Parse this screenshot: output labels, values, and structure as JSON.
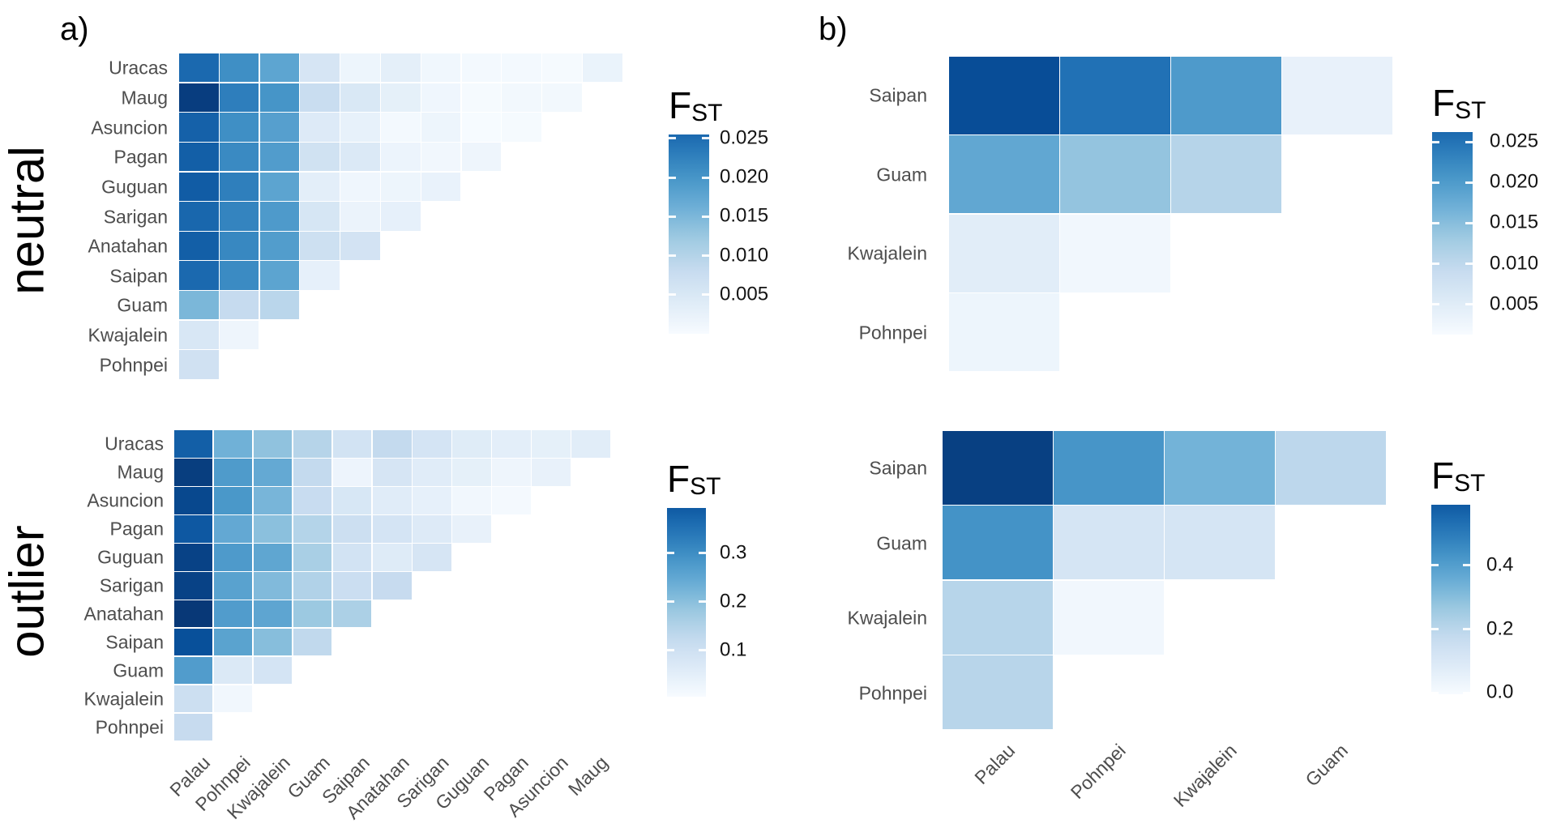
{
  "figure": {
    "panel_a_label": "a)",
    "panel_b_label": "b)",
    "group_labels": [
      "neutral",
      "outlier"
    ],
    "colors": {
      "background": "#ffffff",
      "axis_label_text": "#4d4d4d",
      "title_text": "#000000",
      "legend_tick_text": "#141414"
    },
    "colormap_blues": [
      "#F7FBFF",
      "#DEEBF7",
      "#C6DBEF",
      "#9ECAE1",
      "#6BAED6",
      "#4292C6",
      "#2171B5",
      "#08519C",
      "#08306B"
    ]
  },
  "chart_data": [
    {
      "id": "a_neutral",
      "type": "heatmap",
      "panel": "a",
      "condition": "neutral",
      "ylabels": [
        "Uracas",
        "Maug",
        "Asuncion",
        "Pagan",
        "Guguan",
        "Sarigan",
        "Anatahan",
        "Saipan",
        "Guam",
        "Kwajalein",
        "Pohnpei"
      ],
      "xlabels": [
        "Palau",
        "Pohnpei",
        "Kwajalein",
        "Guam",
        "Saipan",
        "Anatahan",
        "Sarigan",
        "Guguan",
        "Pagan",
        "Asuncion",
        "Maug"
      ],
      "show_xlabels": false,
      "color_domain": [
        0,
        0.026
      ],
      "values": [
        [
          0.0203,
          0.0165,
          0.0141,
          0.0044,
          0.0013,
          0.0025,
          0.0009,
          0.0005,
          0.0005,
          0.0003,
          0.0017
        ],
        [
          0.0247,
          0.0182,
          0.0159,
          0.0061,
          0.0039,
          0.0023,
          0.001,
          0.0003,
          0.0007,
          0.0007
        ],
        [
          0.0211,
          0.0165,
          0.0147,
          0.0034,
          0.0021,
          0.0005,
          0.0013,
          0.0001,
          0.0003
        ],
        [
          0.0213,
          0.017,
          0.0151,
          0.0051,
          0.0036,
          0.0014,
          0.0008,
          0.0012
        ],
        [
          0.0216,
          0.0181,
          0.0142,
          0.0026,
          0.001,
          0.0013,
          0.0018
        ],
        [
          0.0205,
          0.0176,
          0.0153,
          0.0043,
          0.0016,
          0.0022
        ],
        [
          0.0213,
          0.0172,
          0.015,
          0.0055,
          0.0048
        ],
        [
          0.0203,
          0.0169,
          0.0142,
          0.0022
        ],
        [
          0.012,
          0.0065,
          0.0075
        ],
        [
          0.004,
          0.0012
        ],
        [
          0.0052
        ]
      ],
      "legend": {
        "title_main": "F",
        "title_sub": "ST",
        "ticks": [
          0.025,
          0.02,
          0.015,
          0.01,
          0.005
        ],
        "tick_labels": [
          "0.025",
          "0.020",
          "0.015",
          "0.010",
          "0.005"
        ],
        "bar_domain": [
          0,
          0.0255
        ],
        "bar_top_t": 0.78
      }
    },
    {
      "id": "a_outlier",
      "type": "heatmap",
      "panel": "a",
      "condition": "outlier",
      "ylabels": [
        "Uracas",
        "Maug",
        "Asuncion",
        "Pagan",
        "Guguan",
        "Sarigan",
        "Anatahan",
        "Saipan",
        "Guam",
        "Kwajalein",
        "Pohnpei"
      ],
      "xlabels": [
        "Palau",
        "Pohnpei",
        "Kwajalein",
        "Guam",
        "Saipan",
        "Anatahan",
        "Sarigan",
        "Guguan",
        "Pagan",
        "Asuncion",
        "Maug"
      ],
      "show_xlabels": true,
      "color_domain": [
        0,
        0.39
      ],
      "values": [
        [
          0.32,
          0.19,
          0.16,
          0.117,
          0.074,
          0.1,
          0.07,
          0.047,
          0.039,
          0.035,
          0.043
        ],
        [
          0.37,
          0.228,
          0.203,
          0.1,
          0.02,
          0.066,
          0.045,
          0.035,
          0.018,
          0.029
        ],
        [
          0.355,
          0.234,
          0.183,
          0.094,
          0.062,
          0.045,
          0.033,
          0.012,
          0.006
        ],
        [
          0.33,
          0.205,
          0.164,
          0.119,
          0.086,
          0.07,
          0.051,
          0.029
        ],
        [
          0.363,
          0.23,
          0.209,
          0.133,
          0.074,
          0.049,
          0.066
        ],
        [
          0.363,
          0.216,
          0.174,
          0.123,
          0.088,
          0.096
        ],
        [
          0.378,
          0.226,
          0.211,
          0.148,
          0.129
        ],
        [
          0.343,
          0.215,
          0.168,
          0.103
        ],
        [
          0.226,
          0.055,
          0.07
        ],
        [
          0.086,
          0.012
        ],
        [
          0.096
        ]
      ],
      "legend": {
        "title_main": "F",
        "title_sub": "ST",
        "ticks": [
          0.3,
          0.2,
          0.1
        ],
        "tick_labels": [
          "0.3",
          "0.2",
          "0.1"
        ],
        "bar_domain": [
          0.005,
          0.393
        ],
        "bar_top_t": 0.84
      }
    },
    {
      "id": "b_neutral",
      "type": "heatmap",
      "panel": "b",
      "condition": "neutral",
      "ylabels": [
        "Saipan",
        "Guam",
        "Kwajalein",
        "Pohnpei"
      ],
      "xlabels": [
        "Palau",
        "Pohnpei",
        "Kwajalein",
        "Guam"
      ],
      "show_xlabels": false,
      "color_domain": [
        0,
        0.026
      ],
      "values": [
        [
          0.0231,
          0.0195,
          0.0153,
          0.002
        ],
        [
          0.0138,
          0.0104,
          0.0078
        ],
        [
          0.0029,
          0.0008
        ],
        [
          0.0013
        ]
      ],
      "legend": {
        "title_main": "F",
        "title_sub": "ST",
        "ticks": [
          0.025,
          0.02,
          0.015,
          0.01,
          0.005
        ],
        "tick_labels": [
          "0.025",
          "0.020",
          "0.015",
          "0.010",
          "0.005"
        ],
        "bar_domain": [
          0.0013,
          0.0262
        ],
        "bar_top_t": 0.78
      }
    },
    {
      "id": "b_outlier",
      "type": "heatmap",
      "panel": "b",
      "condition": "outlier",
      "ylabels": [
        "Saipan",
        "Guam",
        "Kwajalein",
        "Pohnpei"
      ],
      "xlabels": [
        "Palau",
        "Pohnpei",
        "Kwajalein",
        "Guam"
      ],
      "show_xlabels": true,
      "color_domain": [
        0,
        0.59
      ],
      "values": [
        [
          0.555,
          0.36,
          0.283,
          0.165
        ],
        [
          0.366,
          0.1,
          0.1
        ],
        [
          0.175,
          0.018
        ],
        [
          0.174
        ]
      ],
      "legend": {
        "title_main": "F",
        "title_sub": "ST",
        "ticks": [
          0.4,
          0.2,
          0.0
        ],
        "tick_labels": [
          "0.4",
          "0.2",
          "0.0"
        ],
        "bar_domain": [
          -0.005,
          0.591
        ],
        "bar_top_t": 0.84
      }
    }
  ]
}
